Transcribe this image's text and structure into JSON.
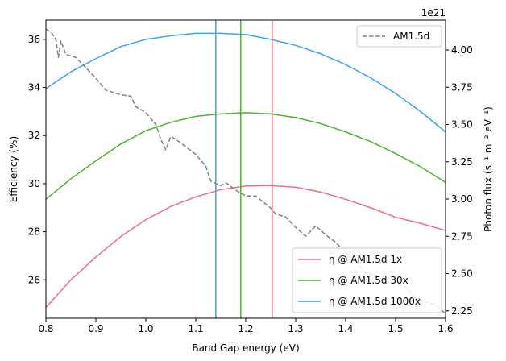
{
  "chart_data": {
    "type": "line",
    "xlabel": "Band Gap energy (eV)",
    "ylabel_left": "Efficiency (%)",
    "ylabel_right": "Photon flux (s⁻¹ m⁻² eV⁻¹)",
    "right_axis_offset": "1e21",
    "xlim": [
      0.8,
      1.6
    ],
    "ylim_left": [
      24.4,
      36.8
    ],
    "ylim_right": [
      2.2,
      4.2
    ],
    "x_ticks": [
      "0.8",
      "0.9",
      "1.0",
      "1.1",
      "1.2",
      "1.3",
      "1.4",
      "1.5",
      "1.6"
    ],
    "y_ticks_left": [
      "26",
      "28",
      "30",
      "32",
      "34",
      "36"
    ],
    "y_ticks_right": [
      "2.25",
      "2.50",
      "2.75",
      "3.00",
      "3.25",
      "3.50",
      "3.75",
      "4.00"
    ],
    "grid": false,
    "x": [
      0.8,
      0.85,
      0.9,
      0.95,
      1.0,
      1.05,
      1.1,
      1.15,
      1.2,
      1.25,
      1.3,
      1.35,
      1.4,
      1.45,
      1.5,
      1.55,
      1.6
    ],
    "series": [
      {
        "name": "η @ AM1.5d 1x",
        "axis": "left",
        "color": "#ee6e86",
        "style": "solid",
        "values": [
          24.85,
          26.0,
          26.95,
          27.8,
          28.5,
          29.05,
          29.45,
          29.75,
          29.9,
          29.92,
          29.85,
          29.65,
          29.35,
          29.0,
          28.6,
          28.35,
          28.05
        ]
      },
      {
        "name": "η @ AM1.5d 30x",
        "axis": "left",
        "color": "#4db32c",
        "style": "solid",
        "values": [
          29.35,
          30.2,
          30.95,
          31.65,
          32.2,
          32.55,
          32.8,
          32.9,
          32.95,
          32.9,
          32.75,
          32.5,
          32.15,
          31.75,
          31.25,
          30.7,
          30.05
        ]
      },
      {
        "name": "η @ AM1.5d 1000x",
        "axis": "left",
        "color": "#3aa5e8",
        "style": "solid",
        "values": [
          33.95,
          34.65,
          35.2,
          35.7,
          36.0,
          36.15,
          36.25,
          36.25,
          36.2,
          36.0,
          35.75,
          35.4,
          34.95,
          34.4,
          33.75,
          33.0,
          32.15
        ]
      },
      {
        "name": "AM1.5d",
        "axis": "right",
        "color": "#808080",
        "style": "dashed",
        "x": [
          0.8,
          0.81,
          0.82,
          0.825,
          0.83,
          0.84,
          0.86,
          0.88,
          0.9,
          0.92,
          0.95,
          0.97,
          0.98,
          1.0,
          1.02,
          1.03,
          1.04,
          1.05,
          1.06,
          1.08,
          1.1,
          1.12,
          1.13,
          1.15,
          1.16,
          1.18,
          1.2,
          1.22,
          1.25,
          1.26,
          1.28,
          1.3,
          1.32,
          1.34,
          1.36,
          1.38,
          1.4,
          1.42,
          1.44,
          1.46,
          1.48,
          1.5,
          1.52,
          1.54,
          1.56,
          1.58,
          1.6
        ],
        "values": [
          4.14,
          4.12,
          4.07,
          3.95,
          4.06,
          3.97,
          3.95,
          3.88,
          3.81,
          3.73,
          3.7,
          3.69,
          3.62,
          3.58,
          3.5,
          3.4,
          3.33,
          3.42,
          3.4,
          3.35,
          3.3,
          3.22,
          3.12,
          3.09,
          3.11,
          3.06,
          3.02,
          3.02,
          2.94,
          2.9,
          2.88,
          2.81,
          2.75,
          2.82,
          2.76,
          2.71,
          2.64,
          2.59,
          2.5,
          2.49,
          2.44,
          2.44,
          2.41,
          2.34,
          2.31,
          2.29,
          2.23
        ]
      }
    ],
    "vlines": [
      {
        "x": 1.14,
        "color": "#3aa5e8"
      },
      {
        "x": 1.19,
        "color": "#4db32c"
      },
      {
        "x": 1.253,
        "color": "#ee6e86"
      }
    ],
    "legend_left_placement": "lower-right",
    "legend_right_placement": "upper-right"
  }
}
